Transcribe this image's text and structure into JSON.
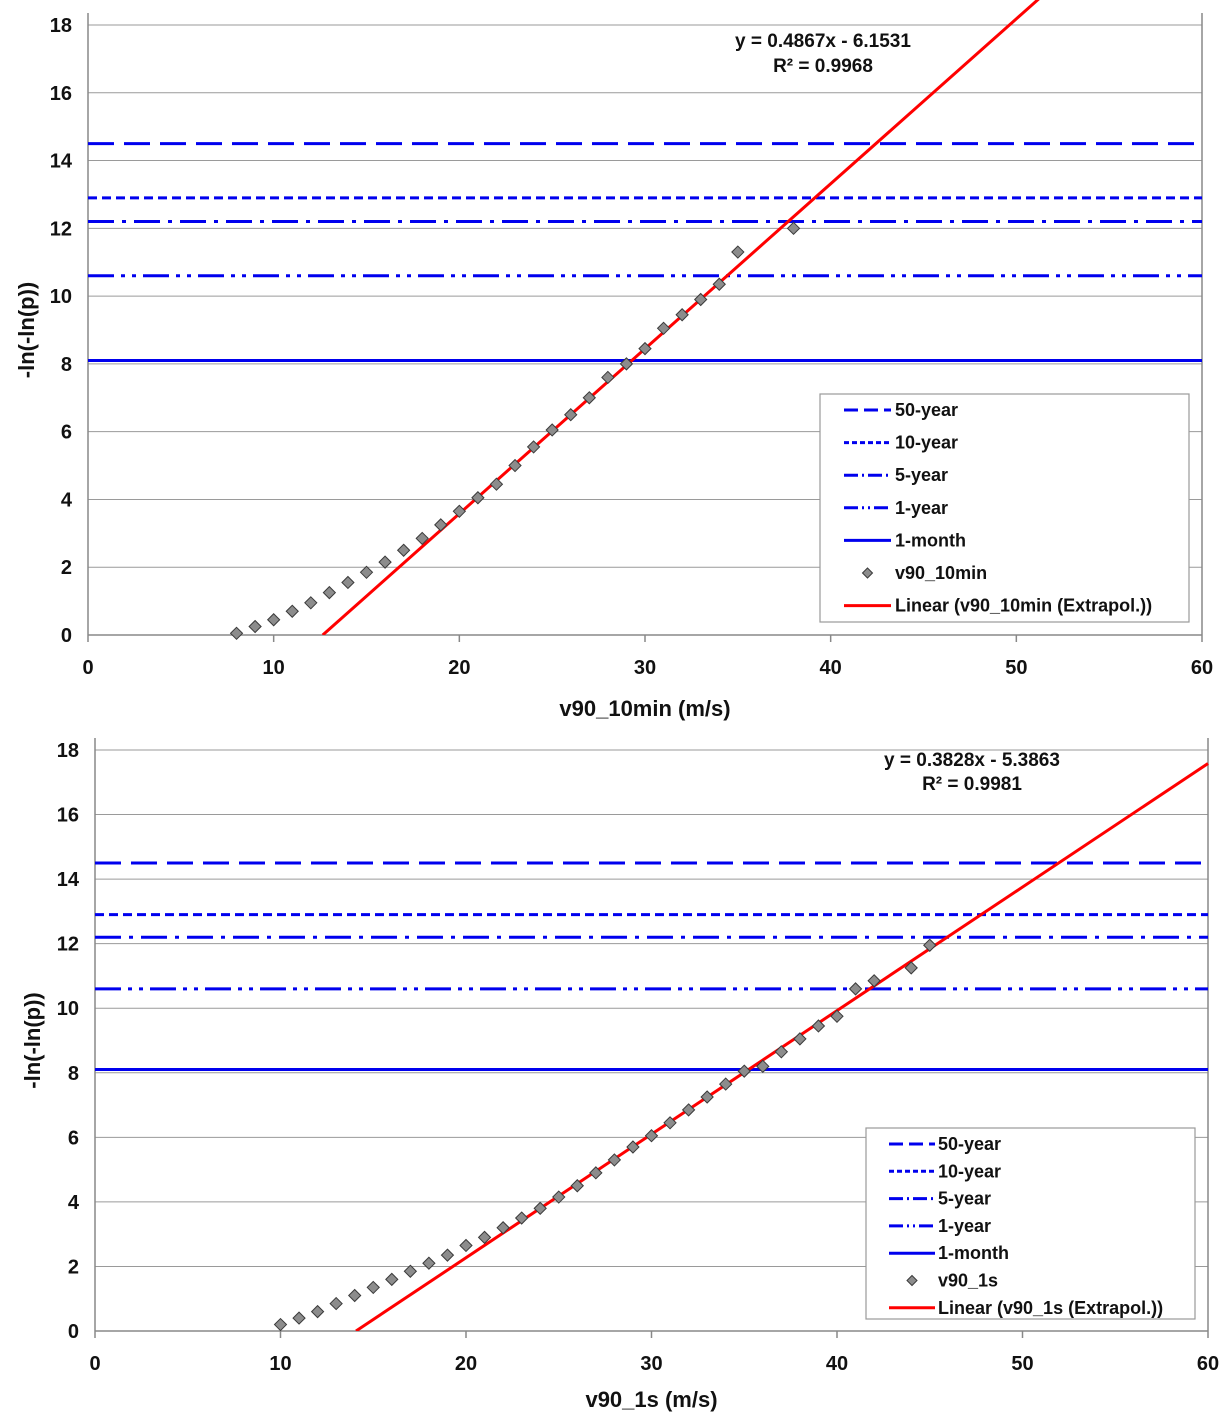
{
  "chart_data": [
    {
      "type": "scatter",
      "xlabel": "v90_10min (m/s)",
      "ylabel": "-ln(-ln(p))",
      "xlim": [
        0,
        60
      ],
      "ylim": [
        0,
        18
      ],
      "x_ticks": [
        0,
        10,
        20,
        30,
        40,
        50,
        60
      ],
      "y_ticks": [
        0,
        2,
        4,
        6,
        8,
        10,
        12,
        14,
        16,
        18
      ],
      "grid": "horizontal",
      "legend_position": "bottom-right",
      "trendline_equation": "y = 0.4867x - 6.1531",
      "trendline_r2": "R² = 0.9968",
      "reference_lines": [
        {
          "name": "50-year",
          "y": 14.5,
          "style": "long-dash",
          "color": "#0000ee"
        },
        {
          "name": "10-year",
          "y": 12.9,
          "style": "short-dash",
          "color": "#0000ee"
        },
        {
          "name": "5-year",
          "y": 12.2,
          "style": "dash-dot",
          "color": "#0000ee"
        },
        {
          "name": "1-year",
          "y": 10.6,
          "style": "dash-dot-dot",
          "color": "#0000ee"
        },
        {
          "name": "1-month",
          "y": 8.1,
          "style": "solid",
          "color": "#0000ee"
        }
      ],
      "scatter_series": {
        "name": "v90_10min",
        "color": "#8c8c8c",
        "points": [
          [
            8,
            0.05
          ],
          [
            9,
            0.25
          ],
          [
            10,
            0.45
          ],
          [
            11,
            0.7
          ],
          [
            12,
            0.95
          ],
          [
            13,
            1.25
          ],
          [
            14,
            1.55
          ],
          [
            15,
            1.85
          ],
          [
            16,
            2.15
          ],
          [
            17,
            2.5
          ],
          [
            18,
            2.85
          ],
          [
            19,
            3.25
          ],
          [
            20,
            3.65
          ],
          [
            21,
            4.05
          ],
          [
            22,
            4.45
          ],
          [
            23,
            5.0
          ],
          [
            24,
            5.55
          ],
          [
            25,
            6.05
          ],
          [
            26,
            6.5
          ],
          [
            27,
            7.0
          ],
          [
            28,
            7.6
          ],
          [
            29,
            8.0
          ],
          [
            30,
            8.45
          ],
          [
            31,
            9.05
          ],
          [
            32,
            9.45
          ],
          [
            33,
            9.9
          ],
          [
            34,
            10.35
          ],
          [
            35,
            11.3
          ],
          [
            38,
            12.0
          ]
        ]
      },
      "trend_series": {
        "name": "Linear (v90_10min (Extrapol.))",
        "color": "#ff0000",
        "slope": 0.4867,
        "intercept": -6.1531
      }
    },
    {
      "type": "scatter",
      "xlabel": "v90_1s (m/s)",
      "ylabel": "-ln(-ln(p))",
      "xlim": [
        0,
        60
      ],
      "ylim": [
        0,
        18
      ],
      "x_ticks": [
        0,
        10,
        20,
        30,
        40,
        50,
        60
      ],
      "y_ticks": [
        0,
        2,
        4,
        6,
        8,
        10,
        12,
        14,
        16,
        18
      ],
      "grid": "horizontal",
      "legend_position": "bottom-right",
      "trendline_equation": "y = 0.3828x - 5.3863",
      "trendline_r2": "R² = 0.9981",
      "reference_lines": [
        {
          "name": "50-year",
          "y": 14.5,
          "style": "long-dash",
          "color": "#0000ee"
        },
        {
          "name": "10-year",
          "y": 12.9,
          "style": "short-dash",
          "color": "#0000ee"
        },
        {
          "name": "5-year",
          "y": 12.2,
          "style": "dash-dot",
          "color": "#0000ee"
        },
        {
          "name": "1-year",
          "y": 10.6,
          "style": "dash-dot-dot",
          "color": "#0000ee"
        },
        {
          "name": "1-month",
          "y": 8.1,
          "style": "solid",
          "color": "#0000ee"
        }
      ],
      "scatter_series": {
        "name": "v90_1s",
        "color": "#8c8c8c",
        "points": [
          [
            10,
            0.2
          ],
          [
            11,
            0.4
          ],
          [
            12,
            0.6
          ],
          [
            13,
            0.85
          ],
          [
            14,
            1.1
          ],
          [
            15,
            1.35
          ],
          [
            16,
            1.6
          ],
          [
            17,
            1.85
          ],
          [
            18,
            2.1
          ],
          [
            19,
            2.35
          ],
          [
            20,
            2.65
          ],
          [
            21,
            2.9
          ],
          [
            22,
            3.2
          ],
          [
            23,
            3.5
          ],
          [
            24,
            3.8
          ],
          [
            25,
            4.15
          ],
          [
            26,
            4.5
          ],
          [
            27,
            4.9
          ],
          [
            28,
            5.3
          ],
          [
            29,
            5.7
          ],
          [
            30,
            6.05
          ],
          [
            31,
            6.45
          ],
          [
            32,
            6.85
          ],
          [
            33,
            7.25
          ],
          [
            34,
            7.65
          ],
          [
            35,
            8.05
          ],
          [
            36,
            8.2
          ],
          [
            37,
            8.65
          ],
          [
            38,
            9.05
          ],
          [
            39,
            9.45
          ],
          [
            40,
            9.75
          ],
          [
            41,
            10.6
          ],
          [
            42,
            10.85
          ],
          [
            44,
            11.25
          ],
          [
            45,
            11.95
          ]
        ]
      },
      "trend_series": {
        "name": "Linear (v90_1s (Extrapol.))",
        "color": "#ff0000",
        "slope": 0.3828,
        "intercept": -5.3863
      }
    }
  ]
}
